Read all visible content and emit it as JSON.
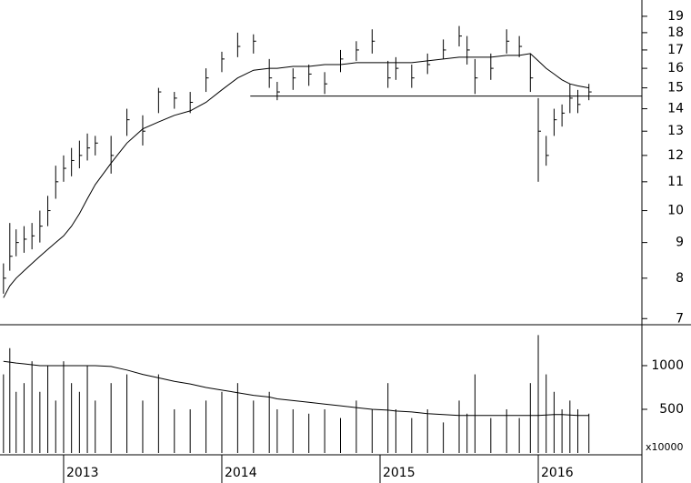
{
  "chart_data": [
    {
      "type": "ohlc",
      "log_scale": true,
      "x": [
        2012.62,
        2012.66,
        2012.7,
        2012.75,
        2012.8,
        2012.85,
        2012.9,
        2012.95,
        2013.0,
        2013.05,
        2013.1,
        2013.15,
        2013.2,
        2013.3,
        2013.4,
        2013.5,
        2013.6,
        2013.7,
        2013.8,
        2013.9,
        2014.0,
        2014.1,
        2014.2,
        2014.3,
        2014.35,
        2014.45,
        2014.55,
        2014.65,
        2014.75,
        2014.85,
        2014.95,
        2015.05,
        2015.1,
        2015.2,
        2015.3,
        2015.4,
        2015.5,
        2015.55,
        2015.6,
        2015.7,
        2015.8,
        2015.88,
        2015.95,
        2016.0,
        2016.05,
        2016.1,
        2016.15,
        2016.2,
        2016.25,
        2016.32
      ],
      "high": [
        8.4,
        9.6,
        9.4,
        9.5,
        9.6,
        10,
        10.5,
        11.6,
        12,
        12.3,
        12.6,
        12.9,
        12.8,
        12.8,
        14,
        13.7,
        15,
        14.8,
        14.8,
        16,
        16.9,
        18,
        17.9,
        16.5,
        15.3,
        16,
        16.2,
        15.8,
        17,
        17.5,
        18.2,
        16.4,
        16.6,
        16.2,
        16.8,
        17.6,
        18.4,
        17.8,
        16.5,
        16.8,
        18.2,
        17.8,
        16.8,
        14.5,
        12.8,
        14,
        14.2,
        15.2,
        14.9,
        15.2
      ],
      "low": [
        7.6,
        8.2,
        8.6,
        8.7,
        8.8,
        9,
        9.5,
        10.4,
        11,
        11.2,
        11.5,
        11.8,
        12,
        11.3,
        12.8,
        12.4,
        13.8,
        14,
        13.8,
        14.8,
        15.8,
        16.6,
        16.8,
        15,
        14.4,
        14.9,
        15.1,
        14.7,
        15.8,
        16.4,
        16.8,
        15,
        15.4,
        15,
        15.7,
        16.5,
        17.2,
        16.2,
        14.7,
        15.4,
        16.8,
        16.6,
        14.8,
        11,
        11.6,
        12.8,
        13.2,
        13.8,
        13.8,
        14.4
      ],
      "close": [
        8,
        8.6,
        9,
        9.1,
        9.2,
        9.5,
        10,
        11,
        11.5,
        11.8,
        12,
        12.3,
        12.5,
        12,
        13.5,
        13,
        14.8,
        14.5,
        14.3,
        15.5,
        16.5,
        17.2,
        17.5,
        15.5,
        14.8,
        15.5,
        15.7,
        15.2,
        16.5,
        17,
        17.5,
        15.5,
        16,
        15.5,
        16.2,
        17,
        17.8,
        17,
        15.5,
        16,
        17.5,
        17.2,
        15.5,
        13,
        12,
        13.5,
        13.8,
        14.5,
        14.2,
        14.8
      ],
      "moving_average": [
        7.5,
        7.8,
        8,
        8.2,
        8.4,
        8.6,
        8.8,
        9,
        9.2,
        9.5,
        9.9,
        10.4,
        10.9,
        11.7,
        12.5,
        13.1,
        13.4,
        13.7,
        13.9,
        14.3,
        14.9,
        15.5,
        15.9,
        16.0,
        16.0,
        16.1,
        16.1,
        16.2,
        16.2,
        16.3,
        16.3,
        16.3,
        16.3,
        16.3,
        16.4,
        16.5,
        16.6,
        16.6,
        16.6,
        16.6,
        16.7,
        16.7,
        16.8,
        16.4,
        16.0,
        15.7,
        15.4,
        15.2,
        15.1,
        15.0
      ],
      "support_level": {
        "value": 14.6,
        "x_start": 2014.18
      },
      "color": "#000000",
      "xlim": [
        2012.598,
        2016.655
      ],
      "ylim": [
        6.86,
        20.05
      ],
      "yticks": [
        7,
        8,
        9,
        10,
        11,
        12,
        13,
        14,
        15,
        16,
        17,
        18,
        19
      ]
    },
    {
      "type": "bar",
      "x": [
        2012.62,
        2012.66,
        2012.7,
        2012.75,
        2012.8,
        2012.85,
        2012.9,
        2012.95,
        2013.0,
        2013.05,
        2013.1,
        2013.15,
        2013.2,
        2013.3,
        2013.4,
        2013.5,
        2013.6,
        2013.7,
        2013.8,
        2013.9,
        2014.0,
        2014.1,
        2014.2,
        2014.3,
        2014.35,
        2014.45,
        2014.55,
        2014.65,
        2014.75,
        2014.85,
        2014.95,
        2015.05,
        2015.1,
        2015.2,
        2015.3,
        2015.4,
        2015.5,
        2015.55,
        2015.6,
        2015.7,
        2015.8,
        2015.88,
        2015.95,
        2016.0,
        2016.05,
        2016.1,
        2016.15,
        2016.2,
        2016.25,
        2016.32
      ],
      "values": [
        900,
        1200,
        700,
        800,
        1050,
        700,
        1000,
        600,
        1050,
        800,
        700,
        1000,
        600,
        800,
        900,
        600,
        900,
        500,
        500,
        600,
        700,
        800,
        600,
        700,
        500,
        500,
        450,
        500,
        400,
        600,
        500,
        800,
        500,
        400,
        500,
        350,
        600,
        450,
        900,
        400,
        500,
        400,
        800,
        1350,
        900,
        700,
        500,
        600,
        500,
        450
      ],
      "moving_average": [
        1050,
        1040,
        1030,
        1020,
        1010,
        1000,
        1000,
        1000,
        1000,
        1000,
        1000,
        1000,
        1000,
        990,
        950,
        900,
        860,
        820,
        790,
        750,
        720,
        690,
        660,
        640,
        620,
        600,
        580,
        560,
        540,
        520,
        500,
        490,
        480,
        470,
        450,
        440,
        430,
        430,
        430,
        430,
        430,
        430,
        430,
        430,
        435,
        440,
        440,
        435,
        430,
        430
      ],
      "color": "#000000",
      "unit_label": "x10000",
      "xlim": [
        2012.598,
        2016.655
      ],
      "ylim": [
        0,
        1437
      ],
      "yticks": [
        500,
        1000
      ],
      "xticks": [
        2013,
        2014,
        2015,
        2016
      ]
    }
  ]
}
